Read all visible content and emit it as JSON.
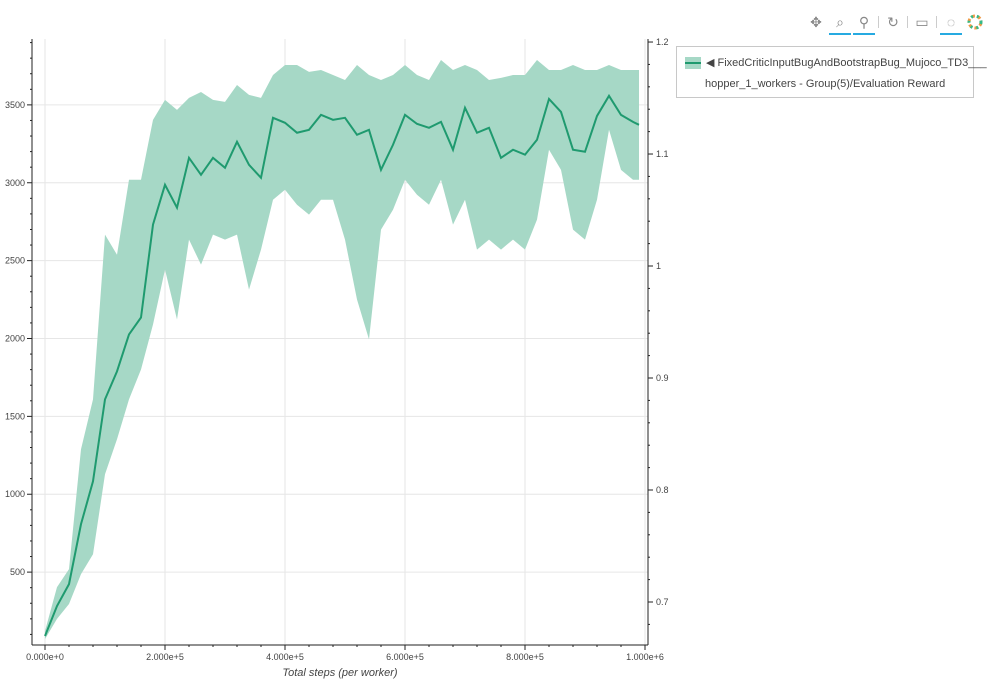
{
  "toolbar": {
    "tools": [
      {
        "name": "pan",
        "icon": "move-icon",
        "active": false
      },
      {
        "name": "box-zoom",
        "icon": "box-zoom-icon",
        "active": true
      },
      {
        "name": "wheel-zoom",
        "icon": "wheel-zoom-icon",
        "active": true
      },
      {
        "name": "reset",
        "icon": "reset-icon",
        "active": false
      },
      {
        "name": "save",
        "icon": "save-icon",
        "active": false
      },
      {
        "name": "crosshair",
        "icon": "crosshair-icon",
        "active": true
      },
      {
        "name": "bokeh-logo",
        "icon": "bokeh-logo-icon",
        "active": false
      }
    ]
  },
  "legend": {
    "line1": "◀ FixedCriticInputBugAndBootstrapBug_Mujoco_TD3___",
    "line2": "hopper_1_workers - Group(5)/Evaluation Reward"
  },
  "colors": {
    "band": "#a6d8c6",
    "line": "#1f9a6f",
    "grid": "#e6e6e6"
  },
  "chart_data": {
    "type": "line",
    "xlabel": "Total steps (per worker)",
    "ylabel": "",
    "xlim": [
      -21667,
      1005000
    ],
    "ylim": [
      32,
      3923
    ],
    "y2lim": [
      0.6616,
      1.2027
    ],
    "grid": true,
    "legend_placement": "outside-top-right",
    "x_ticks": [
      0,
      200000,
      400000,
      600000,
      800000,
      1000000
    ],
    "x_tick_labels": [
      "0.000e+0",
      "2.000e+5",
      "4.000e+5",
      "6.000e+5",
      "8.000e+5",
      "1.000e+6"
    ],
    "y_ticks": [
      500,
      1000,
      1500,
      2000,
      2500,
      3000,
      3500
    ],
    "y_tick_labels": [
      "500",
      "1000",
      "1500",
      "2000",
      "2500",
      "3000",
      "3500"
    ],
    "y2_ticks": [
      0.7,
      0.8,
      0.9,
      1.0,
      1.1,
      1.2
    ],
    "y2_tick_labels": [
      "0.7",
      "0.8",
      "0.9",
      "1",
      "1.1",
      "1.2"
    ],
    "x": [
      0,
      20000,
      40000,
      60000,
      80000,
      100000,
      120000,
      140000,
      160000,
      180000,
      200000,
      220000,
      240000,
      260000,
      280000,
      300000,
      320000,
      340000,
      360000,
      380000,
      400000,
      420000,
      440000,
      460000,
      480000,
      500000,
      520000,
      540000,
      560000,
      580000,
      600000,
      620000,
      640000,
      660000,
      680000,
      700000,
      720000,
      740000,
      760000,
      780000,
      800000,
      820000,
      840000,
      860000,
      880000,
      900000,
      920000,
      940000,
      960000,
      980000,
      990000
    ],
    "series": [
      {
        "name": "FixedCriticInputBugAndBootstrapBug_Mujoco_TD3___hopper_1_workers - Group(5)/Evaluation Reward",
        "mean": [
          90,
          282,
          423,
          808,
          1083,
          1609,
          1789,
          2026,
          2135,
          2731,
          2987,
          2840,
          3160,
          3051,
          3160,
          3096,
          3263,
          3115,
          3032,
          3417,
          3385,
          3321,
          3340,
          3436,
          3404,
          3417,
          3308,
          3340,
          3083,
          3244,
          3436,
          3378,
          3353,
          3391,
          3212,
          3481,
          3321,
          3353,
          3160,
          3212,
          3180,
          3276,
          3538,
          3455,
          3212,
          3199,
          3429,
          3558,
          3436,
          3391,
          3372
        ],
        "lower": [
          70,
          200,
          295,
          487,
          615,
          1128,
          1353,
          1609,
          1801,
          2090,
          2442,
          2122,
          2635,
          2474,
          2667,
          2635,
          2667,
          2314,
          2571,
          2891,
          2955,
          2859,
          2795,
          2891,
          2891,
          2635,
          2250,
          1994,
          2699,
          2827,
          3019,
          2923,
          2859,
          3019,
          2731,
          2891,
          2571,
          2635,
          2571,
          2635,
          2571,
          2763,
          3212,
          3083,
          2699,
          2635,
          2891,
          3340,
          3083,
          3019,
          3019
        ],
        "upper": [
          122,
          404,
          519,
          1289,
          1609,
          2667,
          2538,
          3019,
          3019,
          3404,
          3532,
          3468,
          3545,
          3583,
          3532,
          3519,
          3628,
          3564,
          3545,
          3692,
          3756,
          3756,
          3712,
          3724,
          3692,
          3660,
          3756,
          3692,
          3660,
          3692,
          3756,
          3692,
          3660,
          3788,
          3724,
          3756,
          3724,
          3660,
          3673,
          3692,
          3692,
          3788,
          3724,
          3724,
          3756,
          3724,
          3724,
          3756,
          3724,
          3724,
          3724
        ]
      }
    ]
  }
}
